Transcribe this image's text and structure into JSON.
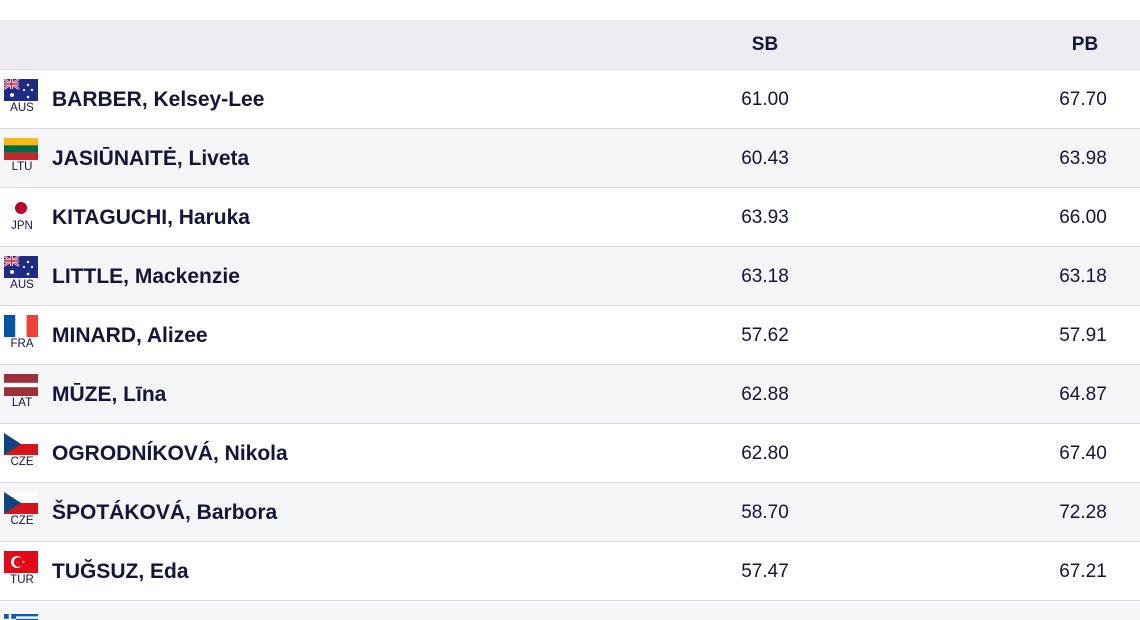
{
  "header": {
    "sb_label": "SB",
    "pb_label": "PB"
  },
  "rows": [
    {
      "code": "AUS",
      "name": "BARBER, Kelsey-Lee",
      "sb": "61.00",
      "pb": "67.70",
      "flag_icon": "australia-flag-icon"
    },
    {
      "code": "LTU",
      "name": "JASIŪNAITĖ, Liveta",
      "sb": "60.43",
      "pb": "63.98",
      "flag_icon": "lithuania-flag-icon"
    },
    {
      "code": "JPN",
      "name": "KITAGUCHI, Haruka",
      "sb": "63.93",
      "pb": "66.00",
      "flag_icon": "japan-flag-icon"
    },
    {
      "code": "AUS",
      "name": "LITTLE, Mackenzie",
      "sb": "63.18",
      "pb": "63.18",
      "flag_icon": "australia-flag-icon"
    },
    {
      "code": "FRA",
      "name": "MINARD, Alizee",
      "sb": "57.62",
      "pb": "57.91",
      "flag_icon": "france-flag-icon"
    },
    {
      "code": "LAT",
      "name": "MŪZE, Līna",
      "sb": "62.88",
      "pb": "64.87",
      "flag_icon": "latvia-flag-icon"
    },
    {
      "code": "CZE",
      "name": "OGRODNÍKOVÁ, Nikola",
      "sb": "62.80",
      "pb": "67.40",
      "flag_icon": "czechia-flag-icon"
    },
    {
      "code": "CZE",
      "name": "ŠPOTÁKOVÁ, Barbora",
      "sb": "58.70",
      "pb": "72.28",
      "flag_icon": "czechia-flag-icon"
    },
    {
      "code": "TUR",
      "name": "TUĞSUZ, Eda",
      "sb": "57.47",
      "pb": "67.21",
      "flag_icon": "turkey-flag-icon"
    }
  ],
  "partial_row": {
    "flag_icon": "greece-flag-icon"
  }
}
